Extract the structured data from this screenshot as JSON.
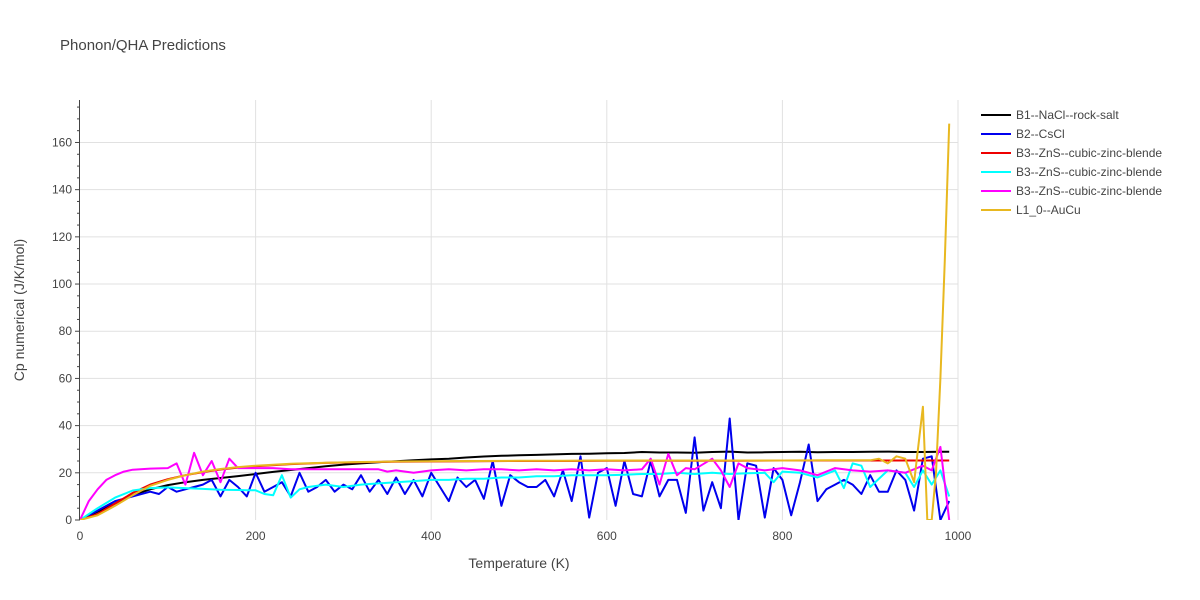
{
  "chart_data": {
    "type": "line",
    "title": "Phonon/QHA Predictions",
    "xlabel": "Temperature (K)",
    "ylabel": "Cp numerical (J/K/mol)",
    "xlim": [
      0,
      1000
    ],
    "ylim": [
      0,
      178
    ],
    "xticks": [
      0,
      200,
      400,
      600,
      800,
      1000
    ],
    "yticks": [
      0,
      20,
      40,
      60,
      80,
      100,
      120,
      140,
      160
    ],
    "grid": true,
    "legend_position": "right",
    "series": [
      {
        "name": "B1--NaCl--rock-salt",
        "color": "#000000",
        "x": [
          0,
          20,
          40,
          60,
          80,
          100,
          120,
          140,
          160,
          180,
          200,
          220,
          240,
          260,
          280,
          300,
          320,
          340,
          360,
          380,
          400,
          420,
          440,
          460,
          480,
          500,
          520,
          540,
          560,
          580,
          600,
          620,
          640,
          660,
          680,
          700,
          720,
          740,
          760,
          780,
          800,
          820,
          840,
          860,
          880,
          900,
          920,
          940,
          960,
          980,
          990
        ],
        "y": [
          0,
          3.5,
          7,
          10.5,
          13,
          14.8,
          16,
          17,
          17.8,
          18.6,
          19.5,
          20.4,
          21.2,
          22,
          22.8,
          23.5,
          24,
          24.5,
          24.9,
          25.3,
          25.7,
          26,
          26.5,
          26.9,
          27.2,
          27.4,
          27.6,
          27.8,
          28,
          28.1,
          28.3,
          28.4,
          28.8,
          28.6,
          28.6,
          28.5,
          28.8,
          29,
          28.6,
          28.7,
          28.8,
          28.9,
          28.7,
          28.8,
          28.8,
          28.9,
          29,
          28.8,
          28.8,
          28.9,
          28.9
        ]
      },
      {
        "name": "B2--CsCl",
        "color": "#0000ee",
        "x": [
          0,
          20,
          40,
          60,
          80,
          90,
          100,
          110,
          120,
          130,
          140,
          150,
          160,
          170,
          180,
          190,
          200,
          210,
          220,
          230,
          240,
          250,
          260,
          270,
          280,
          290,
          300,
          310,
          320,
          330,
          340,
          350,
          360,
          370,
          380,
          390,
          400,
          410,
          420,
          430,
          440,
          450,
          460,
          470,
          480,
          490,
          500,
          510,
          520,
          530,
          540,
          550,
          560,
          570,
          580,
          590,
          600,
          610,
          620,
          630,
          640,
          650,
          660,
          670,
          680,
          690,
          700,
          710,
          720,
          730,
          740,
          750,
          760,
          770,
          780,
          790,
          800,
          810,
          820,
          830,
          840,
          850,
          860,
          870,
          880,
          890,
          900,
          910,
          920,
          930,
          940,
          950,
          960,
          970,
          980,
          990
        ],
        "y": [
          0,
          4,
          8,
          10,
          12,
          11,
          14,
          12,
          13,
          14,
          15,
          17,
          10,
          17,
          14,
          10,
          20,
          12,
          14,
          16,
          10,
          20,
          12,
          14,
          17,
          12,
          15,
          13,
          19,
          12,
          17,
          11,
          18,
          11,
          17,
          10,
          20,
          14,
          8,
          18,
          14,
          17,
          9,
          25,
          6,
          19,
          16,
          14,
          14,
          17,
          10,
          21,
          8,
          27,
          1,
          20,
          22,
          6,
          25,
          11,
          10,
          25,
          10,
          17,
          17,
          3,
          35,
          4,
          16,
          5,
          43,
          0,
          24,
          23,
          1,
          22,
          17,
          2,
          16,
          32,
          8,
          13,
          15,
          17,
          15,
          11,
          19,
          12,
          12,
          21,
          17,
          4,
          26,
          27,
          0,
          8
        ]
      },
      {
        "name": "B3--ZnS--cubic-zinc-blende",
        "color": "#ee0000",
        "x": [
          0,
          20,
          40,
          60,
          80,
          100,
          120,
          140,
          160,
          180,
          200,
          240,
          280,
          320,
          360,
          400,
          450,
          500,
          550,
          600,
          650,
          700,
          750,
          800,
          850,
          900,
          950,
          990
        ],
        "y": [
          0,
          2.5,
          7,
          11.5,
          15,
          17.3,
          19,
          20.3,
          21.4,
          22.2,
          22.8,
          23.7,
          24.2,
          24.5,
          24.7,
          24.8,
          24.9,
          25,
          25,
          25.1,
          25.1,
          25.1,
          25.1,
          25.2,
          25.2,
          25.2,
          25.2,
          25.2
        ]
      },
      {
        "name": "B3--ZnS--cubic-zinc-blende",
        "color": "#00ffff",
        "x": [
          0,
          20,
          40,
          60,
          80,
          100,
          120,
          140,
          160,
          180,
          190,
          200,
          210,
          220,
          230,
          240,
          250,
          260,
          280,
          300,
          320,
          340,
          360,
          380,
          400,
          420,
          440,
          460,
          480,
          500,
          520,
          540,
          560,
          580,
          600,
          620,
          640,
          660,
          680,
          700,
          720,
          740,
          760,
          780,
          790,
          800,
          820,
          840,
          860,
          870,
          880,
          890,
          900,
          920,
          940,
          950,
          960,
          970,
          980,
          990
        ],
        "y": [
          0,
          5,
          9.5,
          12.5,
          13.5,
          13.8,
          13.5,
          13.2,
          12.8,
          12.7,
          12.6,
          12.6,
          11,
          10.5,
          19,
          9.5,
          13,
          14,
          15,
          14,
          15,
          15.5,
          16,
          16.5,
          17,
          17,
          17.5,
          17.5,
          18,
          18,
          18.5,
          18.5,
          19,
          19,
          19,
          19.2,
          19.5,
          19.5,
          20,
          19.5,
          20,
          19.5,
          19.8,
          20,
          16,
          20.5,
          20,
          18,
          21,
          13.5,
          24,
          23,
          14,
          21,
          20,
          14,
          21,
          15,
          21,
          10
        ]
      },
      {
        "name": "B3--ZnS--cubic-zinc-blende",
        "color": "#ff00ff",
        "x": [
          0,
          10,
          20,
          30,
          40,
          50,
          60,
          80,
          100,
          110,
          120,
          130,
          140,
          150,
          160,
          170,
          180,
          200,
          220,
          240,
          260,
          280,
          300,
          320,
          340,
          350,
          360,
          380,
          400,
          420,
          440,
          460,
          480,
          500,
          520,
          540,
          560,
          580,
          600,
          620,
          640,
          650,
          660,
          670,
          680,
          690,
          700,
          720,
          730,
          740,
          750,
          760,
          780,
          800,
          820,
          840,
          860,
          880,
          900,
          920,
          940,
          960,
          970,
          980,
          990
        ],
        "y": [
          0,
          8,
          13,
          17,
          19,
          20.5,
          21.3,
          21.8,
          22,
          24,
          15,
          28.5,
          19,
          25,
          16,
          26,
          22,
          22,
          22,
          21.5,
          21.5,
          21.5,
          21.5,
          21.5,
          21.5,
          20.5,
          21,
          20,
          21,
          21.5,
          21,
          21.5,
          21.5,
          21,
          21.5,
          21,
          21.5,
          21,
          21.5,
          21,
          21.5,
          26,
          15,
          28,
          19,
          22,
          21.5,
          26,
          21,
          14,
          24,
          22,
          21,
          22,
          21,
          19,
          22,
          21,
          20.5,
          21,
          20,
          23,
          21,
          31,
          0
        ]
      },
      {
        "name": "L1_0--AuCu",
        "color": "#e8b820",
        "x": [
          0,
          20,
          40,
          60,
          80,
          100,
          120,
          140,
          160,
          180,
          200,
          240,
          280,
          320,
          360,
          400,
          450,
          500,
          550,
          600,
          650,
          700,
          750,
          800,
          850,
          900,
          910,
          920,
          930,
          940,
          950,
          960,
          965,
          970,
          975,
          980,
          985,
          990
        ],
        "y": [
          0,
          2,
          6,
          10.5,
          14.5,
          17,
          19,
          20.5,
          21.6,
          22.4,
          23,
          23.8,
          24.3,
          24.6,
          24.8,
          24.9,
          25,
          25.1,
          25.1,
          25.2,
          25.2,
          25.2,
          25.2,
          25.2,
          25.3,
          25.3,
          26,
          24,
          27,
          26,
          16,
          48,
          0,
          0,
          20,
          60,
          110,
          168
        ]
      }
    ]
  }
}
